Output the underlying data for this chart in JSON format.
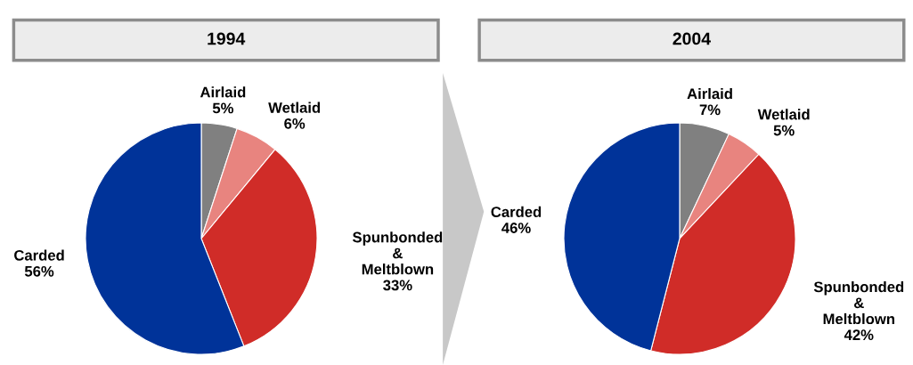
{
  "chart_data": [
    {
      "type": "pie",
      "title": "1994",
      "categories": [
        "Airlaid",
        "Wetlaid",
        "Spunbonded\n&\nMeltblown",
        "Carded"
      ],
      "values": [
        5,
        6,
        33,
        56
      ],
      "colors": [
        "#808080",
        "#e8847f",
        "#d02c28",
        "#003399"
      ],
      "value_labels": [
        "5%",
        "6%",
        "33%",
        "56%"
      ]
    },
    {
      "type": "pie",
      "title": "2004",
      "categories": [
        "Airlaid",
        "Wetlaid",
        "Spunbonded\n&\nMeltblown",
        "Carded"
      ],
      "values": [
        7,
        5,
        42,
        46
      ],
      "colors": [
        "#808080",
        "#e8847f",
        "#d02c28",
        "#003399"
      ],
      "value_labels": [
        "7%",
        "5%",
        "42%",
        "46%"
      ]
    }
  ]
}
